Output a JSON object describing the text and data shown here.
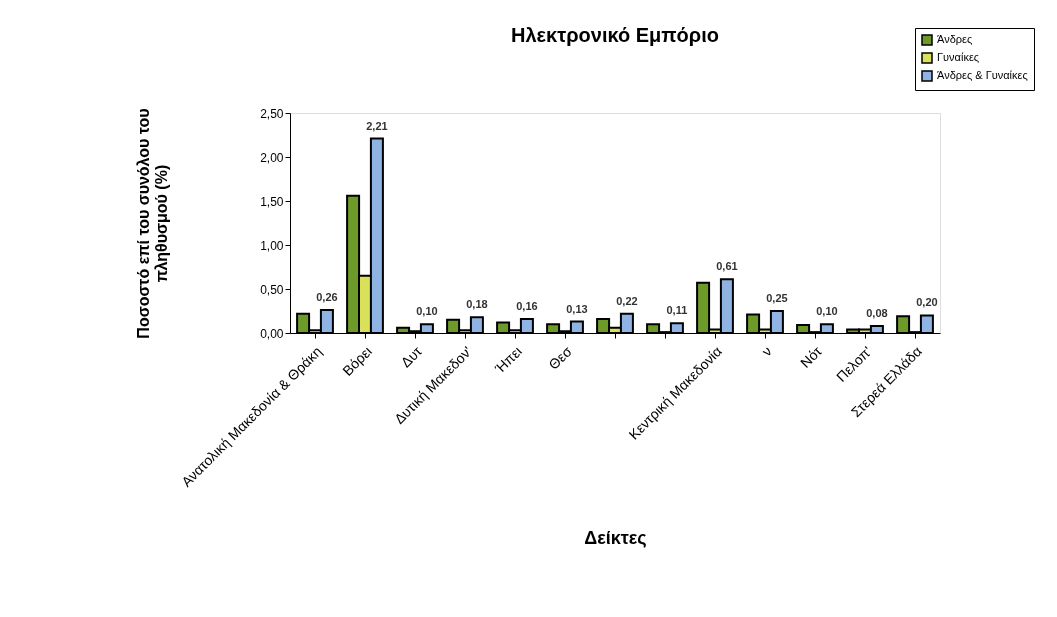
{
  "chart_data": {
    "type": "bar",
    "title": "Ηλεκτρονικό Εμπόριο",
    "xlabel": "Δείκτες",
    "ylabel": "Ποσοστό επί του συνόλου του\nπληθυσμού (%)",
    "categories": [
      "Ανατολική Μακεδονία & Θράκη",
      "Βόρει",
      "Δυτ",
      "Δυτική Μακεδον'",
      "Ήπει",
      "Θεσ",
      null,
      null,
      "Κεντρική Μακεδονία",
      "ν",
      "Νότ",
      "Πελοπ'",
      "Στερεά Ελλάδα"
    ],
    "series": [
      {
        "name": "Άνδρες",
        "color": "#6e9a2a",
        "values": [
          0.22,
          1.56,
          0.06,
          0.15,
          0.12,
          0.1,
          0.16,
          0.1,
          0.57,
          0.21,
          0.09,
          0.04,
          0.19
        ]
      },
      {
        "name": "Γυναίκες",
        "color": "#d9e05a",
        "values": [
          0.03,
          0.65,
          0.02,
          0.03,
          0.03,
          0.02,
          0.06,
          0.01,
          0.04,
          0.04,
          0.01,
          0.04,
          0.01
        ]
      },
      {
        "name": "Άνδρες & Γυναίκες",
        "color": "#8fb4e3",
        "values": [
          0.26,
          2.21,
          0.1,
          0.18,
          0.16,
          0.13,
          0.22,
          0.11,
          0.61,
          0.25,
          0.1,
          0.08,
          0.2
        ],
        "value_labels": [
          "0,26",
          "2,21",
          "0,10",
          "0,18",
          "0,16",
          "0,13",
          "0,22",
          "0,11",
          "0,61",
          "0,25",
          "0,10",
          "0,08",
          "0,20"
        ]
      }
    ],
    "ylim": [
      0,
      2.5
    ],
    "yticks": [
      {
        "value": 0,
        "label": "0,00"
      },
      {
        "value": 0.5,
        "label": "0,50"
      },
      {
        "value": 1,
        "label": "1,00"
      },
      {
        "value": 1.5,
        "label": "1,50"
      },
      {
        "value": 2,
        "label": "2,00"
      },
      {
        "value": 2.5,
        "label": "2,50"
      }
    ],
    "grid": false,
    "legend": "top right"
  }
}
